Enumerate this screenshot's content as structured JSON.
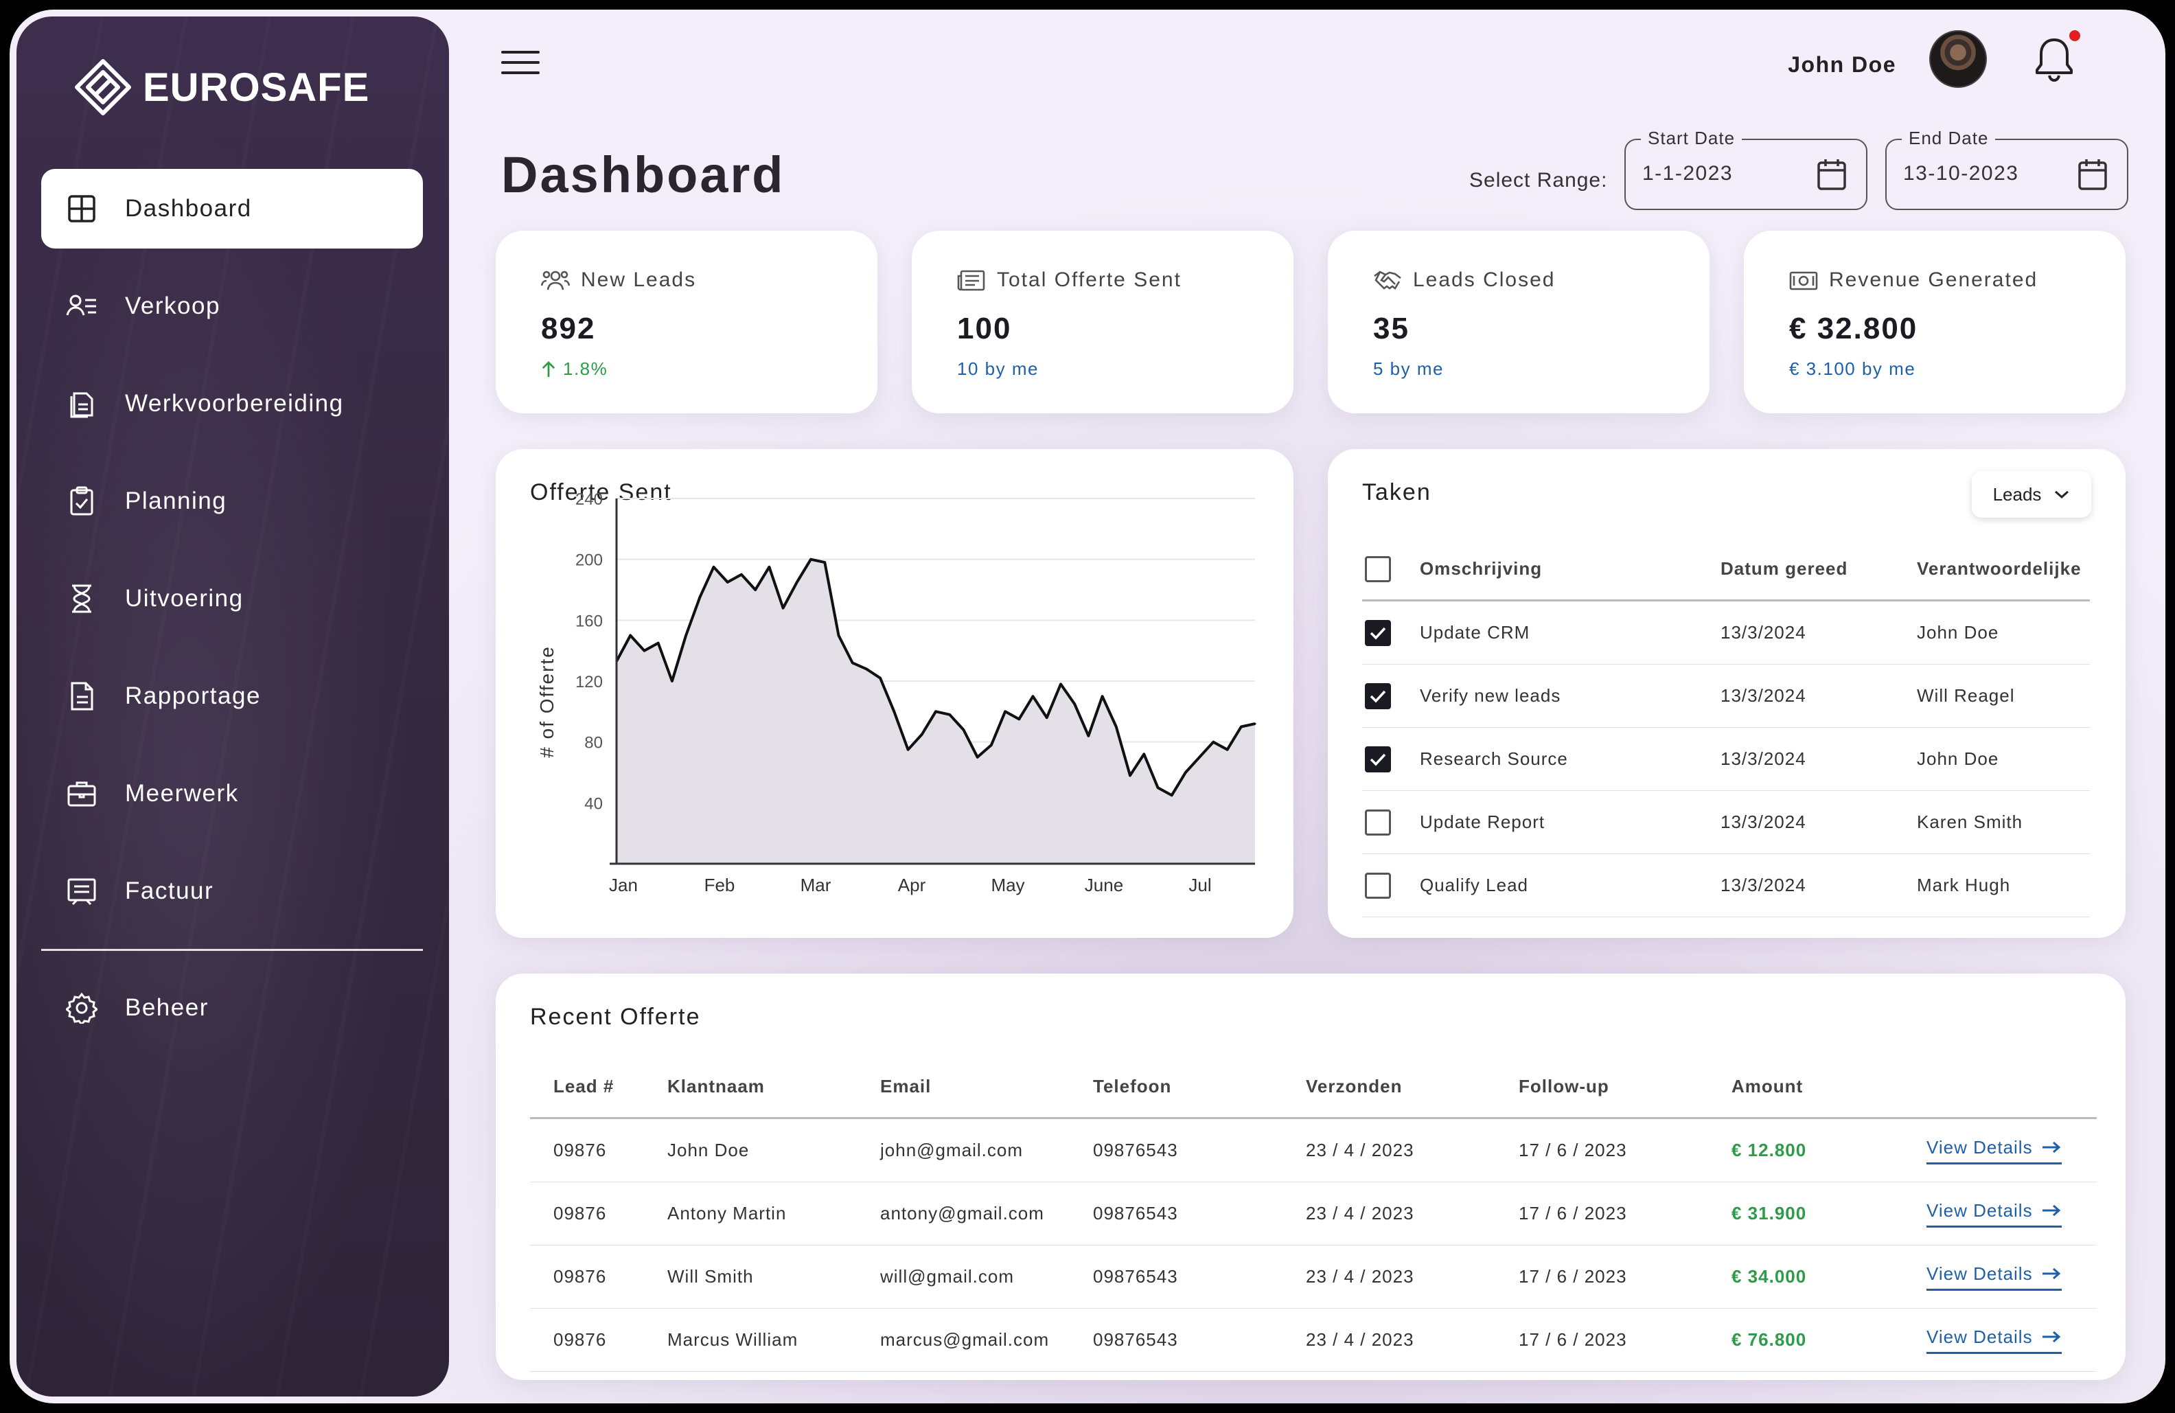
{
  "brand": {
    "name": "EUROSAFE"
  },
  "sidebar": {
    "items": [
      {
        "label": "Dashboard",
        "icon": "grid-icon",
        "active": true
      },
      {
        "label": "Verkoop",
        "icon": "user-list-icon"
      },
      {
        "label": "Werkvoorbereiding",
        "icon": "documents-icon"
      },
      {
        "label": "Planning",
        "icon": "clipboard-check-icon"
      },
      {
        "label": "Uitvoering",
        "icon": "hourglass-icon"
      },
      {
        "label": "Rapportage",
        "icon": "report-icon"
      },
      {
        "label": "Meerwerk",
        "icon": "briefcase-icon"
      },
      {
        "label": "Factuur",
        "icon": "invoice-icon"
      }
    ],
    "bottom_item": {
      "label": "Beheer",
      "icon": "gear-icon"
    }
  },
  "header": {
    "user_name": "John Doe",
    "page_title": "Dashboard",
    "range_label": "Select Range:",
    "start_date": {
      "legend": "Start Date",
      "value": "1-1-2023"
    },
    "end_date": {
      "legend": "End Date",
      "value": "13-10-2023"
    }
  },
  "stats": [
    {
      "label": "New Leads",
      "value": "892",
      "sub": "1.8%",
      "sub_color": "green",
      "icon": "users-icon"
    },
    {
      "label": "Total Offerte Sent",
      "value": "100",
      "sub": "10 by me",
      "sub_color": "blue",
      "icon": "newspaper-icon"
    },
    {
      "label": "Leads Closed",
      "value": "35",
      "sub": "5 by me",
      "sub_color": "blue",
      "icon": "handshake-icon"
    },
    {
      "label": "Revenue Generated",
      "value": "€ 32.800",
      "sub": "€ 3.100 by me",
      "sub_color": "blue",
      "icon": "cash-icon"
    }
  ],
  "chart_card": {
    "title": "Offerte Sent"
  },
  "chart_data": {
    "type": "area",
    "title": "Offerte Sent",
    "xlabel": "",
    "ylabel": "# of Offerte",
    "ylim": [
      0,
      240
    ],
    "yticks": [
      40,
      80,
      120,
      160,
      200,
      240
    ],
    "xticks": [
      "Jan",
      "Feb",
      "Mar",
      "Apr",
      "May",
      "June",
      "Jul"
    ],
    "grid": true,
    "series": [
      {
        "values": [
          133,
          150,
          140,
          145,
          120,
          150,
          175,
          195,
          185,
          190,
          180,
          195,
          168,
          185,
          200,
          198,
          150,
          132,
          128,
          122,
          100,
          75,
          85,
          100,
          98,
          88,
          70,
          78,
          100,
          95,
          110,
          96,
          118,
          105,
          84,
          110,
          90,
          58,
          72,
          50,
          45,
          60,
          70,
          80,
          75,
          90,
          92
        ]
      }
    ]
  },
  "tasks": {
    "title": "Taken",
    "dropdown": "Leads",
    "columns": [
      "Omschrijving",
      "Datum gereed",
      "Verantwoordelijke"
    ],
    "rows": [
      {
        "checked": true,
        "desc": "Update CRM",
        "date": "13/3/2024",
        "owner": "John Doe"
      },
      {
        "checked": true,
        "desc": "Verify new leads",
        "date": "13/3/2024",
        "owner": "Will Reagel"
      },
      {
        "checked": true,
        "desc": "Research Source",
        "date": "13/3/2024",
        "owner": "John Doe"
      },
      {
        "checked": false,
        "desc": "Update Report",
        "date": "13/3/2024",
        "owner": "Karen Smith"
      },
      {
        "checked": false,
        "desc": "Qualify Lead",
        "date": "13/3/2024",
        "owner": "Mark Hugh"
      }
    ]
  },
  "recent": {
    "title": "Recent Offerte",
    "columns": [
      "Lead #",
      "Klantnaam",
      "Email",
      "Telefoon",
      "Verzonden",
      "Follow-up",
      "Amount"
    ],
    "link_label": "View Details",
    "rows": [
      {
        "lead": "09876",
        "name": "John Doe",
        "email": "john@gmail.com",
        "phone": "09876543",
        "sent": "23 / 4 / 2023",
        "follow": "17 / 6 / 2023",
        "amount": "€ 12.800"
      },
      {
        "lead": "09876",
        "name": "Antony Martin",
        "email": "antony@gmail.com",
        "phone": "09876543",
        "sent": "23 / 4 / 2023",
        "follow": "17 / 6 / 2023",
        "amount": "€ 31.900"
      },
      {
        "lead": "09876",
        "name": "Will Smith",
        "email": "will@gmail.com",
        "phone": "09876543",
        "sent": "23 / 4 / 2023",
        "follow": "17 / 6 / 2023",
        "amount": "€ 34.000"
      },
      {
        "lead": "09876",
        "name": "Marcus William",
        "email": "marcus@gmail.com",
        "phone": "09876543",
        "sent": "23 / 4 / 2023",
        "follow": "17 / 6 / 2023",
        "amount": "€ 76.800"
      }
    ]
  },
  "colors": {
    "sidebar_bg": "#35293f",
    "page_bg": "#f3eef9",
    "positive": "#2e9b48",
    "link": "#1f5fa8",
    "notification": "#e02020"
  }
}
